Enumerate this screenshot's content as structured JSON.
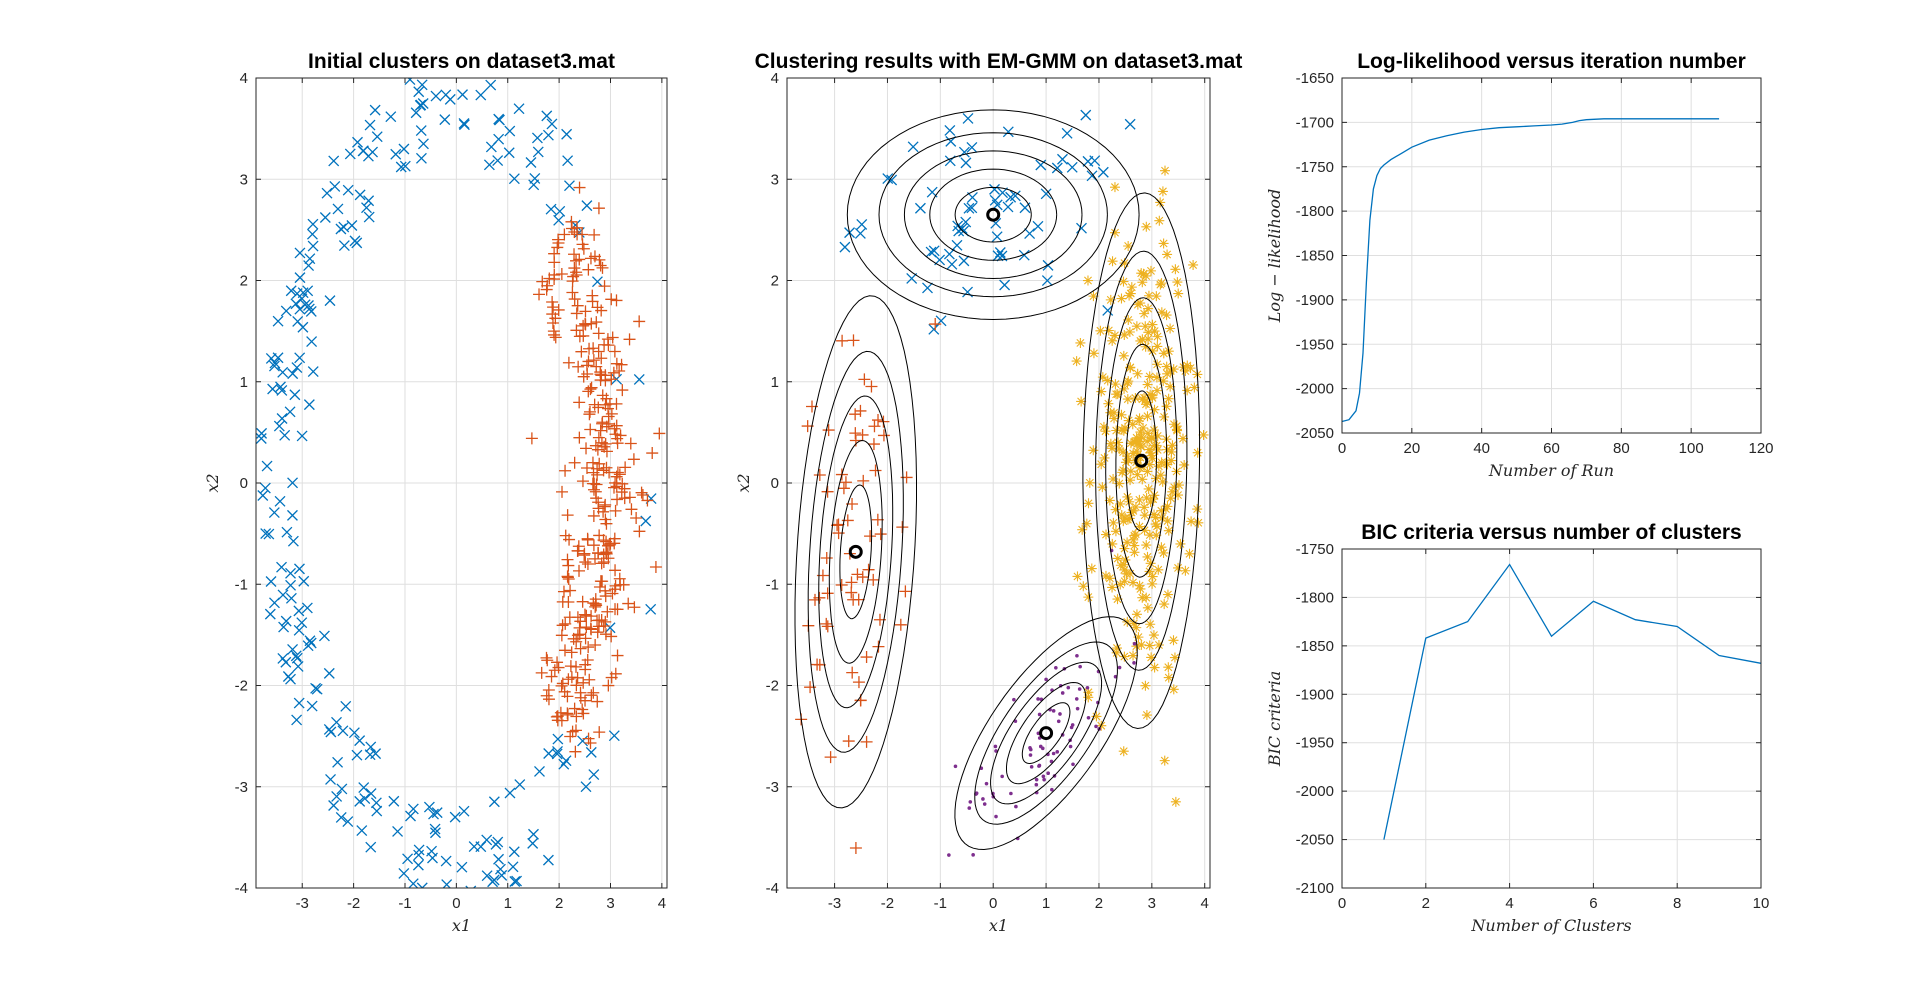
{
  "colors": {
    "blue": "#0072BD",
    "orange": "#D95319",
    "yellow": "#EDB120",
    "purple": "#7E2F8E",
    "contour": "#000000",
    "grid": "#dfdfdf"
  },
  "chart_data": [
    {
      "type": "scatter",
      "title": "Initial clusters on dataset3.mat",
      "xlabel": "x1",
      "ylabel": "x2",
      "xlim": [
        -3.9,
        4.1
      ],
      "ylim": [
        -4,
        4
      ],
      "xticks": [
        -3,
        -2,
        -1,
        0,
        1,
        2,
        3,
        4
      ],
      "yticks": [
        -4,
        -3,
        -2,
        -1,
        0,
        1,
        2,
        3,
        4
      ],
      "grid": true,
      "series": [
        {
          "marker": "x",
          "color": "blue",
          "description_of_shape": "ring",
          "ring_center": [
            0.1,
            0
          ],
          "ring_radii": [
            3.3,
            3.6
          ],
          "approx_points": 260
        },
        {
          "marker": "+",
          "color": "orange",
          "description_of_shape": "right arc",
          "center": [
            2.9,
            -0.2
          ],
          "spread": [
            0.5,
            1.9
          ],
          "approx_points": 340
        }
      ]
    },
    {
      "type": "scatter",
      "title": "Clustering results with EM-GMM on dataset3.mat",
      "xlabel": "x1",
      "ylabel": "x2",
      "xlim": [
        -3.9,
        4.1
      ],
      "ylim": [
        -4,
        4
      ],
      "xticks": [
        -3,
        -2,
        -1,
        0,
        1,
        2,
        3,
        4
      ],
      "yticks": [
        -4,
        -3,
        -2,
        -1,
        0,
        1,
        2,
        3,
        4
      ],
      "grid": true,
      "clusters": [
        {
          "marker": "x",
          "color": "blue",
          "mean": [
            0,
            2.65
          ],
          "sd": [
            1.2,
            0.45
          ],
          "rho": 0.0,
          "approx_points": 70
        },
        {
          "marker": "+",
          "color": "orange",
          "mean": [
            -2.6,
            -0.68
          ],
          "sd": [
            0.5,
            1.1
          ],
          "rho": 0.25,
          "approx_points": 70
        },
        {
          "marker": "*",
          "color": "yellow",
          "mean": [
            2.8,
            0.22
          ],
          "sd": [
            0.48,
            1.15
          ],
          "rho": 0.05,
          "approx_points": 330
        },
        {
          "marker": ".",
          "color": "purple",
          "mean": [
            1.0,
            -2.47
          ],
          "sd": [
            0.75,
            0.5
          ],
          "rho": 0.7,
          "approx_points": 80
        }
      ]
    },
    {
      "type": "line",
      "title": "Log-likelihood versus iteration number",
      "xlabel": "Number of Run",
      "ylabel": "Log − likelihood",
      "xlim": [
        0,
        120
      ],
      "ylim": [
        -2050,
        -1650
      ],
      "xticks": [
        0,
        20,
        40,
        60,
        80,
        100,
        120
      ],
      "yticks": [
        -2050,
        -2000,
        -1950,
        -1900,
        -1850,
        -1800,
        -1750,
        -1700,
        -1650
      ],
      "grid": true,
      "series": [
        {
          "x": [
            0,
            2,
            4,
            5,
            6,
            7,
            8,
            9,
            10,
            11,
            12,
            14,
            17,
            20,
            25,
            30,
            35,
            40,
            45,
            50,
            55,
            60,
            63,
            66,
            68,
            70,
            75,
            80,
            90,
            100,
            108
          ],
          "y": [
            -2037,
            -2035,
            -2025,
            -2005,
            -1960,
            -1880,
            -1810,
            -1775,
            -1760,
            -1752,
            -1748,
            -1742,
            -1735,
            -1728,
            -1720,
            -1715,
            -1711,
            -1708,
            -1706,
            -1705,
            -1704,
            -1703,
            -1702,
            -1700,
            -1698,
            -1697,
            -1696,
            -1696,
            -1696,
            -1696,
            -1696
          ]
        }
      ]
    },
    {
      "type": "line",
      "title": "BIC criteria versus number of clusters",
      "xlabel": "Number of Clusters",
      "ylabel": "BIC criteria",
      "xlim": [
        0,
        10
      ],
      "ylim": [
        -2100,
        -1750
      ],
      "xticks": [
        0,
        2,
        4,
        6,
        8,
        10
      ],
      "yticks": [
        -2100,
        -2050,
        -2000,
        -1950,
        -1900,
        -1850,
        -1800,
        -1750
      ],
      "grid": true,
      "series": [
        {
          "x": [
            1,
            2,
            3,
            4,
            5,
            6,
            7,
            8,
            9,
            10
          ],
          "y": [
            -2050,
            -1842,
            -1825,
            -1766,
            -1840,
            -1804,
            -1823,
            -1830,
            -1860,
            -1868
          ]
        }
      ]
    }
  ]
}
